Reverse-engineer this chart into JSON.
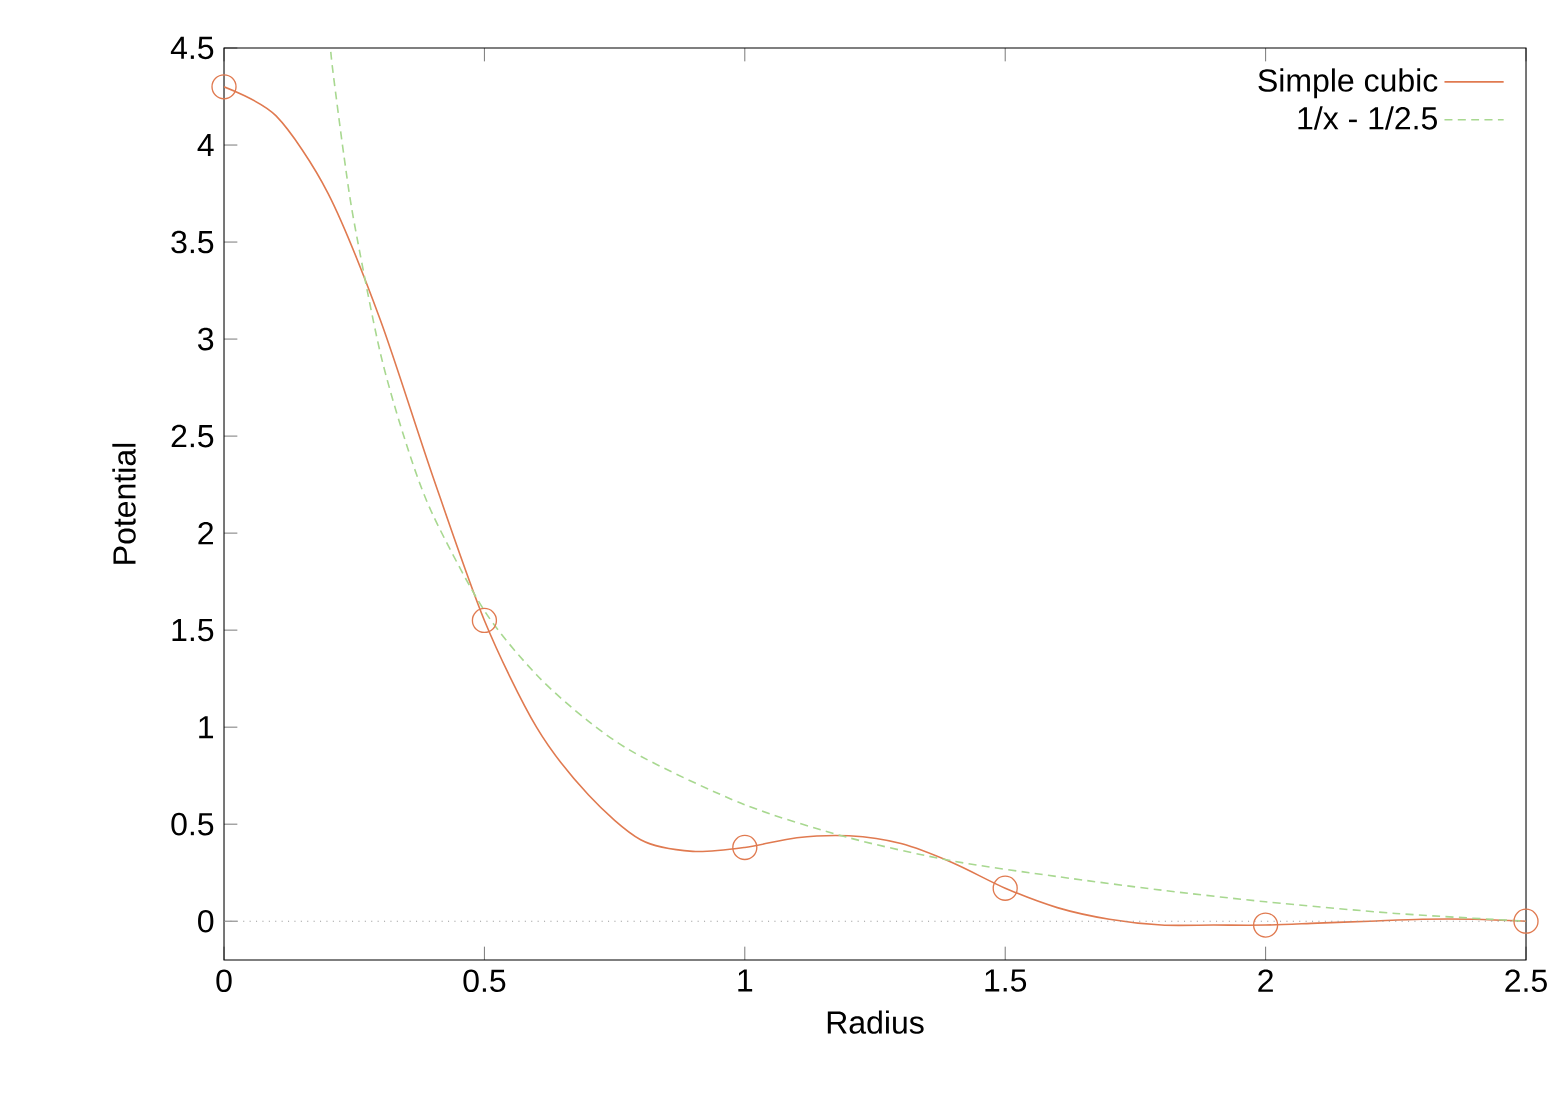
{
  "chart_data": {
    "type": "line",
    "xlabel": "Radius",
    "ylabel": "Potential",
    "xlim": [
      0,
      2.5
    ],
    "ylim": [
      -0.2,
      4.5
    ],
    "xticks": [
      0,
      0.5,
      1,
      1.5,
      2,
      2.5
    ],
    "yticks": [
      0,
      0.5,
      1,
      1.5,
      2,
      2.5,
      3,
      3.5,
      4,
      4.5
    ],
    "grid": false,
    "legend": "top right",
    "series": [
      {
        "name": "Simple cubic",
        "color": "#e07a50",
        "line_style": "solid",
        "marker": "none",
        "x": [
          0,
          0.1,
          0.2,
          0.3,
          0.4,
          0.5,
          0.6,
          0.7,
          0.8,
          0.9,
          1.0,
          1.1,
          1.2,
          1.3,
          1.4,
          1.5,
          1.6,
          1.7,
          1.8,
          1.9,
          2.0,
          2.1,
          2.2,
          2.3,
          2.4,
          2.5
        ],
        "values": [
          4.3,
          4.15,
          3.75,
          3.1,
          2.3,
          1.55,
          1.0,
          0.65,
          0.42,
          0.36,
          0.38,
          0.43,
          0.44,
          0.4,
          0.3,
          0.17,
          0.07,
          0.01,
          -0.02,
          -0.02,
          -0.02,
          -0.01,
          0.0,
          0.01,
          0.01,
          0.0
        ]
      },
      {
        "name": "1/x - 1/2.5",
        "color": "#a8d890",
        "line_style": "dashed",
        "marker": "none",
        "x": [
          0.205,
          0.21,
          0.23,
          0.25,
          0.3,
          0.35,
          0.4,
          0.5,
          0.6,
          0.7,
          0.8,
          1.0,
          1.2,
          1.4,
          1.6,
          1.8,
          2.0,
          2.25,
          2.5
        ],
        "values": [
          4.48,
          4.36,
          3.95,
          3.6,
          2.93,
          2.46,
          2.1,
          1.6,
          1.27,
          1.03,
          0.85,
          0.6,
          0.43,
          0.31,
          0.23,
          0.16,
          0.1,
          0.04,
          0.0
        ]
      },
      {
        "type": "scatter",
        "color": "#e07a50",
        "marker": "circle",
        "x": [
          0,
          0.5,
          1,
          1.5,
          2,
          2.5
        ],
        "values": [
          4.3,
          1.55,
          0.38,
          0.17,
          -0.02,
          0.0
        ]
      }
    ],
    "ref_lines": [
      {
        "axis": "y",
        "value": 0,
        "color": "#999999",
        "line_style": "dotted"
      }
    ]
  }
}
